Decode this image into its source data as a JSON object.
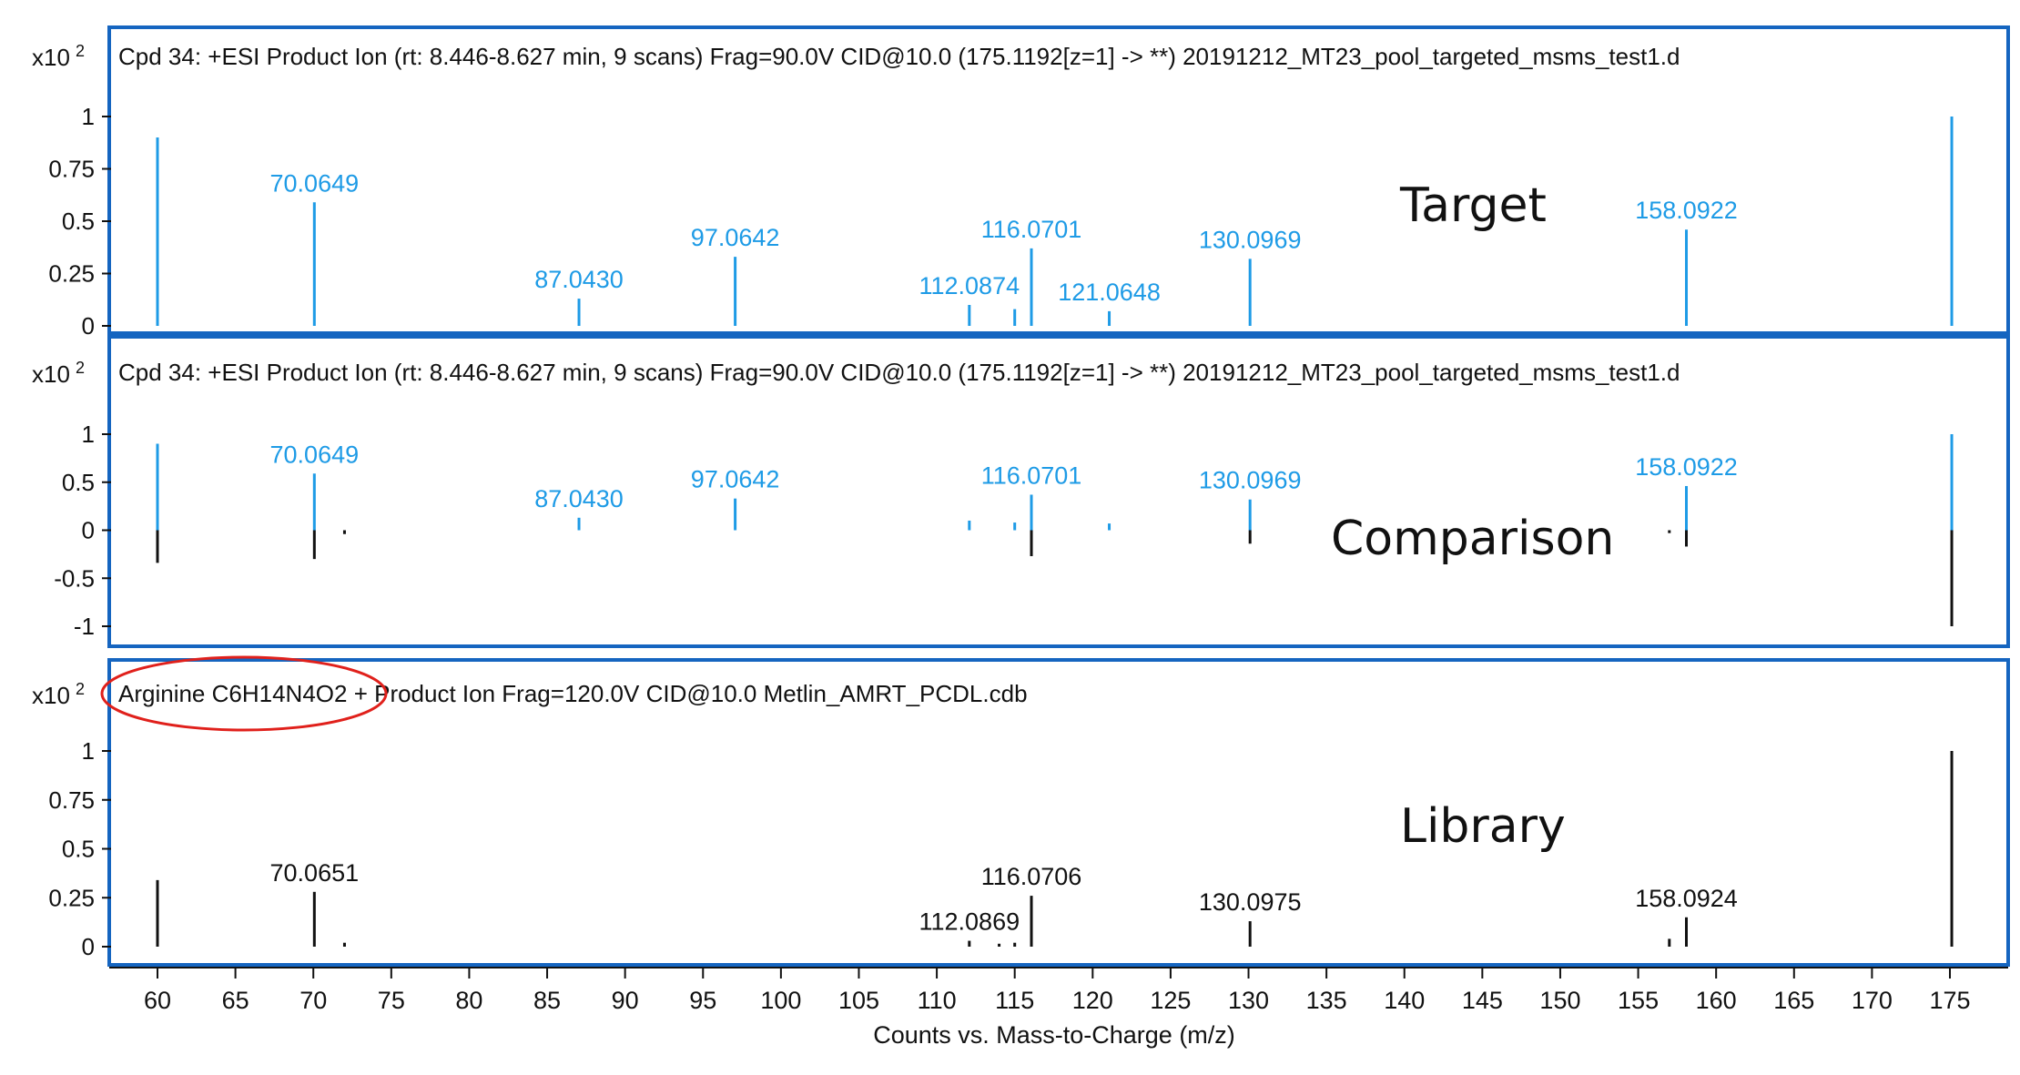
{
  "chart_data": [
    {
      "type": "bar",
      "panel": "target",
      "scale_label": "x10",
      "scale_exp": "2",
      "header": "Cpd 34: +ESI Product Ion (rt: 8.446-8.627 min, 9 scans) Frag=90.0V CID@10.0 (175.1192[z=1] -> **) 20191212_MT23_pool_targeted_msms_test1.d",
      "overlay": "Target",
      "ylim": [
        0,
        1.05
      ],
      "yticks": [
        {
          "value": 1,
          "label": "1"
        },
        {
          "value": 0.75,
          "label": "0.75"
        },
        {
          "value": 0.5,
          "label": "0.5"
        },
        {
          "value": 0.25,
          "label": "0.25"
        },
        {
          "value": 0,
          "label": "0"
        }
      ],
      "series": [
        {
          "color": "#1e9be6",
          "peaks": [
            {
              "x": 60.0,
              "y": 0.9,
              "label": ""
            },
            {
              "x": 70.0649,
              "y": 0.59,
              "label": "70.0649"
            },
            {
              "x": 87.043,
              "y": 0.13,
              "label": "87.0430"
            },
            {
              "x": 97.0642,
              "y": 0.33,
              "label": "97.0642"
            },
            {
              "x": 112.0874,
              "y": 0.1,
              "label": "112.0874"
            },
            {
              "x": 115.0,
              "y": 0.08,
              "label": ""
            },
            {
              "x": 116.0701,
              "y": 0.37,
              "label": "116.0701"
            },
            {
              "x": 121.0648,
              "y": 0.07,
              "label": "121.0648"
            },
            {
              "x": 130.0969,
              "y": 0.32,
              "label": "130.0969"
            },
            {
              "x": 158.0922,
              "y": 0.46,
              "label": "158.0922"
            },
            {
              "x": 175.1192,
              "y": 1.0,
              "label": ""
            }
          ]
        }
      ]
    },
    {
      "type": "bar",
      "panel": "comparison",
      "scale_label": "x10",
      "scale_exp": "2",
      "header": "Cpd 34: +ESI Product Ion (rt: 8.446-8.627 min, 9 scans) Frag=90.0V CID@10.0 (175.1192[z=1] -> **) 20191212_MT23_pool_targeted_msms_test1.d",
      "overlay": "Comparison",
      "ylim": [
        -1.05,
        1.05
      ],
      "yticks": [
        {
          "value": 1,
          "label": "1"
        },
        {
          "value": 0.5,
          "label": "0.5"
        },
        {
          "value": 0,
          "label": "0"
        },
        {
          "value": -0.5,
          "label": "-0.5"
        },
        {
          "value": -1,
          "label": "-1"
        }
      ],
      "series": [
        {
          "color": "#1e9be6",
          "peaks": [
            {
              "x": 60.0,
              "y": 0.9,
              "label": ""
            },
            {
              "x": 70.0649,
              "y": 0.59,
              "label": "70.0649"
            },
            {
              "x": 87.043,
              "y": 0.13,
              "label": "87.0430"
            },
            {
              "x": 97.0642,
              "y": 0.33,
              "label": "97.0642"
            },
            {
              "x": 112.0874,
              "y": 0.1,
              "label": ""
            },
            {
              "x": 115.0,
              "y": 0.08,
              "label": ""
            },
            {
              "x": 116.0701,
              "y": 0.37,
              "label": "116.0701"
            },
            {
              "x": 121.0648,
              "y": 0.07,
              "label": ""
            },
            {
              "x": 130.0969,
              "y": 0.32,
              "label": "130.0969"
            },
            {
              "x": 158.0922,
              "y": 0.46,
              "label": "158.0922"
            },
            {
              "x": 175.1192,
              "y": 1.0,
              "label": ""
            }
          ]
        },
        {
          "color": "#111111",
          "peaks": [
            {
              "x": 60.0,
              "y": -0.34,
              "label": ""
            },
            {
              "x": 70.0651,
              "y": -0.3,
              "label": ""
            },
            {
              "x": 72.0,
              "y": -0.04,
              "label": ""
            },
            {
              "x": 116.0706,
              "y": -0.27,
              "label": ""
            },
            {
              "x": 130.0975,
              "y": -0.14,
              "label": ""
            },
            {
              "x": 157.0,
              "y": -0.03,
              "label": ""
            },
            {
              "x": 158.0924,
              "y": -0.17,
              "label": ""
            },
            {
              "x": 175.1192,
              "y": -1.0,
              "label": ""
            }
          ]
        }
      ]
    },
    {
      "type": "bar",
      "panel": "library",
      "scale_label": "x10",
      "scale_exp": "2",
      "header": "Arginine C6H14N4O2 + Product Ion Frag=120.0V CID@10.0 Metlin_AMRT_PCDL.cdb",
      "highlight": "Arginine C6H14N4O2",
      "overlay": "Library",
      "ylim": [
        0,
        1.05
      ],
      "yticks": [
        {
          "value": 1,
          "label": "1"
        },
        {
          "value": 0.75,
          "label": "0.75"
        },
        {
          "value": 0.5,
          "label": "0.5"
        },
        {
          "value": 0.25,
          "label": "0.25"
        },
        {
          "value": 0,
          "label": "0"
        }
      ],
      "series": [
        {
          "color": "#111111",
          "peaks": [
            {
              "x": 60.0,
              "y": 0.34,
              "label": ""
            },
            {
              "x": 70.0651,
              "y": 0.28,
              "label": "70.0651"
            },
            {
              "x": 72.0,
              "y": 0.02,
              "label": ""
            },
            {
              "x": 112.0869,
              "y": 0.03,
              "label": "112.0869"
            },
            {
              "x": 114.0,
              "y": 0.015,
              "label": ""
            },
            {
              "x": 115.0,
              "y": 0.02,
              "label": ""
            },
            {
              "x": 116.0706,
              "y": 0.26,
              "label": "116.0706"
            },
            {
              "x": 130.0975,
              "y": 0.13,
              "label": "130.0975"
            },
            {
              "x": 157.0,
              "y": 0.04,
              "label": ""
            },
            {
              "x": 158.0924,
              "y": 0.15,
              "label": "158.0924"
            },
            {
              "x": 175.1192,
              "y": 1.0,
              "label": ""
            }
          ]
        }
      ]
    }
  ],
  "x_axis": {
    "xlim": [
      57,
      178
    ],
    "ticks": [
      {
        "value": 60,
        "label": "60"
      },
      {
        "value": 65,
        "label": "65"
      },
      {
        "value": 70,
        "label": "70"
      },
      {
        "value": 75,
        "label": "75"
      },
      {
        "value": 80,
        "label": "80"
      },
      {
        "value": 85,
        "label": "85"
      },
      {
        "value": 90,
        "label": "90"
      },
      {
        "value": 95,
        "label": "95"
      },
      {
        "value": 100,
        "label": "100"
      },
      {
        "value": 105,
        "label": "105"
      },
      {
        "value": 110,
        "label": "110"
      },
      {
        "value": 115,
        "label": "115"
      },
      {
        "value": 120,
        "label": "120"
      },
      {
        "value": 125,
        "label": "125"
      },
      {
        "value": 130,
        "label": "130"
      },
      {
        "value": 135,
        "label": "135"
      },
      {
        "value": 140,
        "label": "140"
      },
      {
        "value": 145,
        "label": "145"
      },
      {
        "value": 150,
        "label": "150"
      },
      {
        "value": 155,
        "label": "155"
      },
      {
        "value": 160,
        "label": "160"
      },
      {
        "value": 165,
        "label": "165"
      },
      {
        "value": 170,
        "label": "170"
      },
      {
        "value": 175,
        "label": "175"
      }
    ],
    "xlabel": "Counts vs. Mass-to-Charge (m/z)"
  },
  "colors": {
    "frame": "#1565c0",
    "observed": "#1e9be6",
    "library": "#111111",
    "highlight": "#e0201b"
  }
}
